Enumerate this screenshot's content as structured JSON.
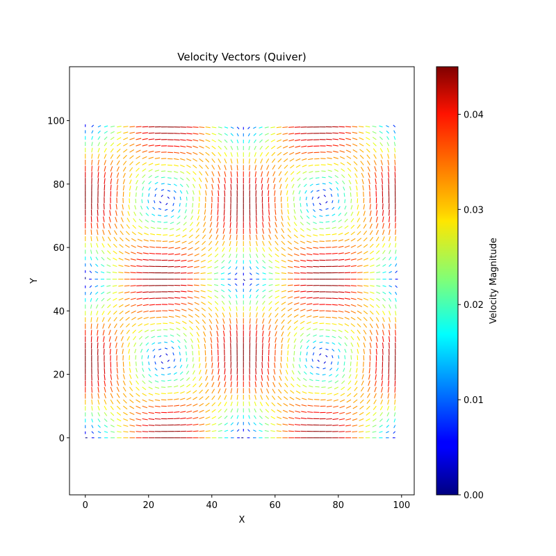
{
  "chart_data": {
    "type": "quiver",
    "title": "Velocity Vectors (Quiver)",
    "xlabel": "X",
    "ylabel": "Y",
    "xlim": [
      -5,
      104
    ],
    "ylim": [
      -18,
      117
    ],
    "xticks": [
      0,
      20,
      40,
      60,
      80,
      100
    ],
    "yticks": [
      0,
      20,
      40,
      60,
      80,
      100
    ],
    "grid": false,
    "colorbar": {
      "label": "Velocity Magnitude",
      "colormap": "jet",
      "range": [
        0,
        0.045
      ],
      "ticks": [
        0.0,
        0.01,
        0.02,
        0.03,
        0.04
      ],
      "tick_labels": [
        "0.00",
        "0.01",
        "0.02",
        "0.03",
        "0.04"
      ]
    },
    "field": {
      "domain_x": [
        0,
        99
      ],
      "domain_y": [
        0,
        99
      ],
      "vortex_centers": [
        [
          25,
          25
        ],
        [
          75,
          25
        ],
        [
          25,
          75
        ],
        [
          75,
          75
        ],
        [
          50,
          50
        ],
        [
          0,
          50
        ],
        [
          100,
          50
        ],
        [
          50,
          0
        ],
        [
          50,
          100
        ]
      ],
      "max_magnitude": 0.045,
      "high_speed_regions": [
        "left and right edges near y=20 and y=80",
        "x=50 near y=20 and y=80",
        "x=20 and x=80 near y=50",
        "top and bottom edges near x=25 and x=75"
      ]
    }
  }
}
